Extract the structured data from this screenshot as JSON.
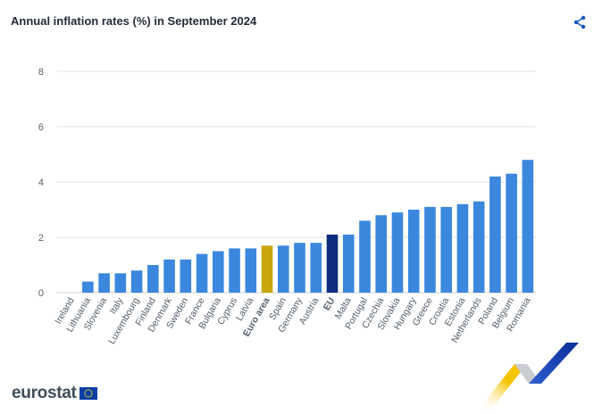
{
  "title": "Annual inflation rates (%) in September 2024",
  "icons": {
    "share": "share-icon"
  },
  "logo": {
    "text": "eurostat",
    "flag": "eu-flag-icon"
  },
  "colors": {
    "bar": "#3b87de",
    "euro_area": "#c9a60e",
    "eu": "#0e2c7d",
    "grid": "#e3e3e3",
    "axis_text": "#555e6b",
    "share": "#1556c4"
  },
  "chart_data": {
    "type": "bar",
    "title": "Annual inflation rates (%) in September 2024",
    "xlabel": "",
    "ylabel": "",
    "ylim": [
      0,
      8
    ],
    "yticks": [
      0,
      2,
      4,
      6,
      8
    ],
    "grid": true,
    "categories": [
      "Ireland",
      "Lithuania",
      "Slovenia",
      "Italy",
      "Luxembourg",
      "Finland",
      "Denmark",
      "Sweden",
      "France",
      "Bulgaria",
      "Cyprus",
      "Latvia",
      "Euro area",
      "Spain",
      "Germany",
      "Austria",
      "EU",
      "Malta",
      "Portugal",
      "Czechia",
      "Slovakia",
      "Hungary",
      "Greece",
      "Croatia",
      "Estonia",
      "Netherlands",
      "Poland",
      "Belgium",
      "Romania"
    ],
    "values": [
      0.0,
      0.4,
      0.7,
      0.7,
      0.8,
      1.0,
      1.2,
      1.2,
      1.4,
      1.5,
      1.6,
      1.6,
      1.7,
      1.7,
      1.8,
      1.8,
      2.1,
      2.1,
      2.6,
      2.8,
      2.9,
      3.0,
      3.1,
      3.1,
      3.2,
      3.3,
      4.2,
      4.3,
      4.8
    ],
    "highlight": {
      "Euro area": "euro_area",
      "EU": "eu"
    },
    "bold_labels": [
      "Euro area",
      "EU"
    ]
  }
}
